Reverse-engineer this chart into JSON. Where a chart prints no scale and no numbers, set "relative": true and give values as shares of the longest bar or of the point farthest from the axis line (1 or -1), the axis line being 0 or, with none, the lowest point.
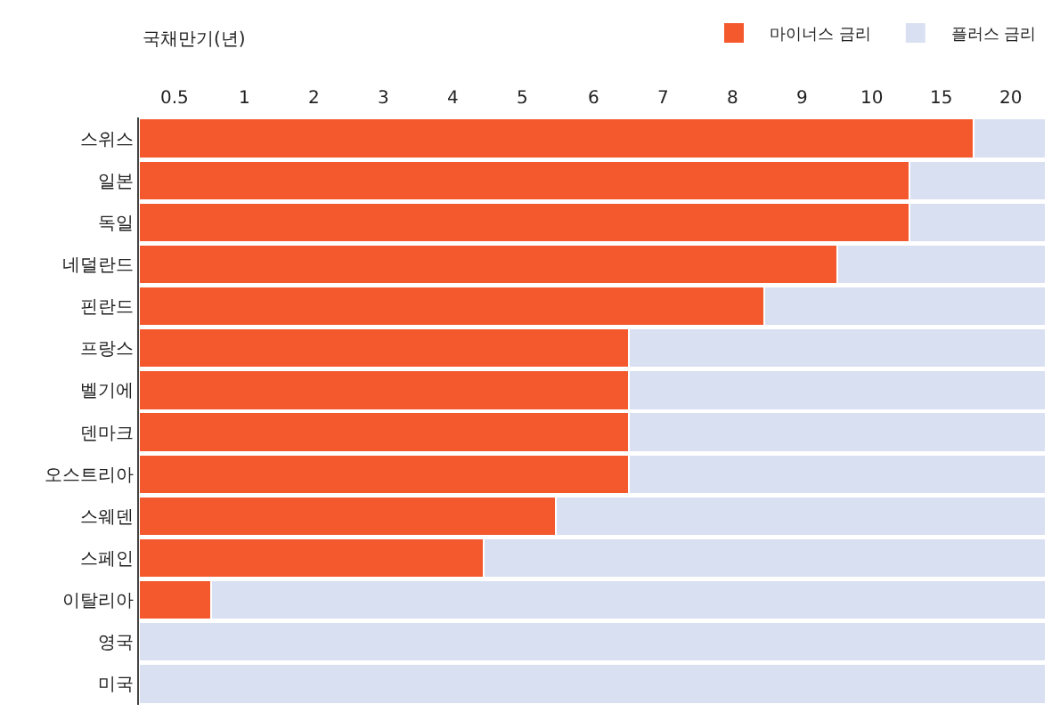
{
  "chart_data": {
    "type": "bar",
    "orientation": "horizontal",
    "stacked": true,
    "relative": true,
    "xlabel": "국채만기(년)",
    "legend": "top right",
    "categories": [
      "스위스",
      "일본",
      "독일",
      "네덜란드",
      "핀란드",
      "프랑스",
      "벨기에",
      "덴마크",
      "오스트리아",
      "스웨덴",
      "스페인",
      "이탈리아",
      "영국",
      "미국"
    ],
    "series": [
      {
        "name": "마이너스 금리",
        "color": "#f4592d",
        "values": [
          0.92,
          0.85,
          0.85,
          0.77,
          0.69,
          0.54,
          0.54,
          0.54,
          0.54,
          0.46,
          0.38,
          0.08,
          0,
          0
        ]
      },
      {
        "name": "플러스 금리",
        "color": "#d9e0f1",
        "values": [
          0.08,
          0.15,
          0.15,
          0.23,
          0.31,
          0.46,
          0.46,
          0.46,
          0.46,
          0.54,
          0.62,
          0.92,
          1,
          1
        ]
      }
    ],
    "annotations": [
      "0.5",
      "1",
      "2",
      "3",
      "4",
      "5",
      "6",
      "7",
      "8",
      "9",
      "10",
      "15",
      "20"
    ]
  }
}
